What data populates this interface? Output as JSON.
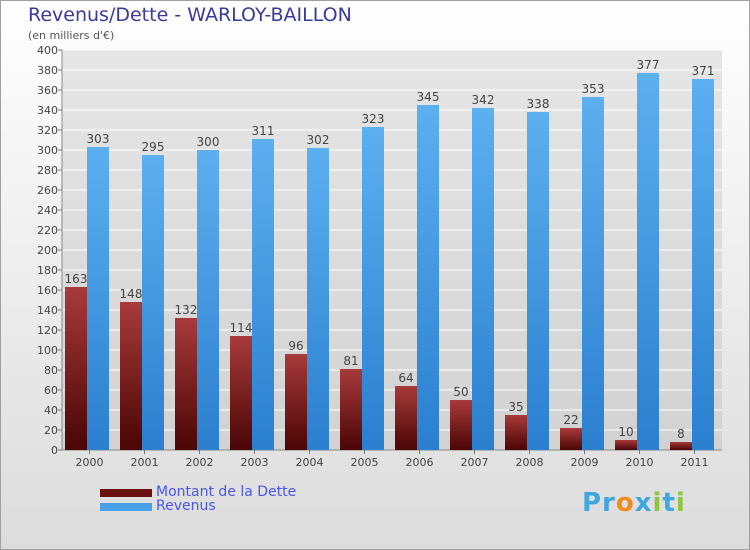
{
  "title": "Revenus/Dette - WARLOY-BAILLON",
  "subtitle": "(en milliers d'€)",
  "logo": "Proxiti",
  "colors": {
    "debt": "#7a1f1f",
    "revenue": "#4aa0e6",
    "grid": "#ffffff",
    "background": "#dddddd"
  },
  "chart_data": {
    "type": "bar",
    "categories": [
      "2000",
      "2001",
      "2002",
      "2003",
      "2004",
      "2005",
      "2006",
      "2007",
      "2008",
      "2009",
      "2010",
      "2011"
    ],
    "series": [
      {
        "name": "Montant de la Dette",
        "color": "#7a1f1f",
        "values": [
          163,
          148,
          132,
          114,
          96,
          81,
          64,
          50,
          35,
          22,
          10,
          8
        ]
      },
      {
        "name": "Revenus",
        "color": "#4aa0e6",
        "values": [
          303,
          295,
          300,
          311,
          302,
          323,
          345,
          342,
          338,
          353,
          377,
          371
        ]
      }
    ],
    "ylim": [
      0,
      400
    ],
    "ytick_step": 20,
    "grid": true,
    "legend_position": "bottom-left"
  }
}
